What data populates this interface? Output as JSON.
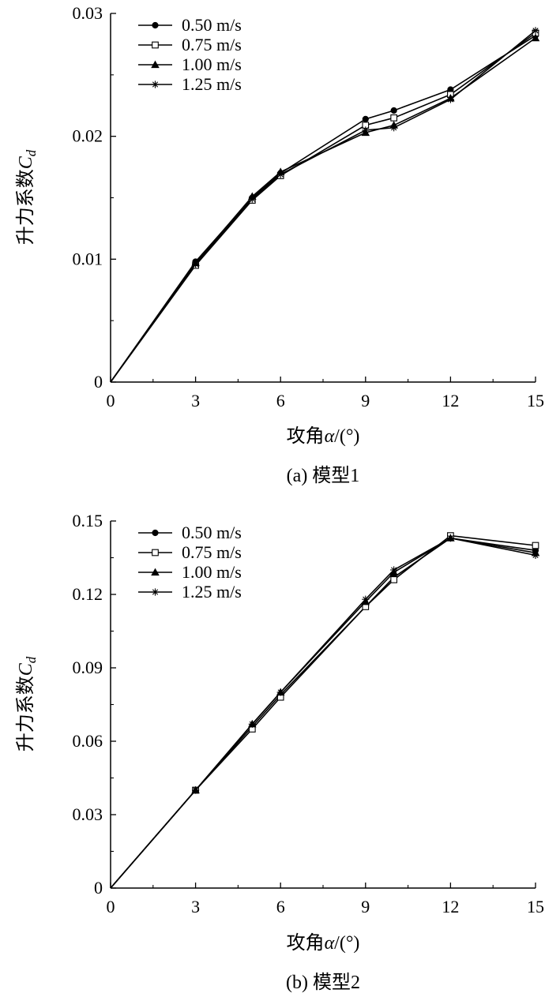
{
  "chart_data": [
    {
      "type": "line",
      "caption": "(a) 模型1",
      "xlabel": "攻角α/(°)",
      "ylabel": "升力系数C_d",
      "ylabel_main": "升力系数",
      "ylabel_symbol": "C",
      "ylabel_subscript": "d",
      "xlabel_main": "攻角",
      "xlabel_symbol": "α",
      "xlabel_unit": "/(°)",
      "x": [
        0,
        3,
        5,
        6,
        9,
        10,
        12,
        15
      ],
      "xlim": [
        0,
        15
      ],
      "ylim": [
        0,
        0.03
      ],
      "xticks": [
        0,
        3,
        6,
        9,
        12,
        15
      ],
      "xtick_labels": [
        "0",
        "3",
        "6",
        "9",
        "12",
        "15"
      ],
      "yticks": [
        0,
        0.01,
        0.02,
        0.03
      ],
      "ytick_labels": [
        "0",
        "0.01",
        "0.02",
        "0.03"
      ],
      "legend_position": "top-left",
      "series": [
        {
          "name": "0.50 m/s",
          "marker": "filled-circle",
          "values": [
            0,
            0.0098,
            0.015,
            0.017,
            0.0214,
            0.0221,
            0.0238,
            0.0282
          ]
        },
        {
          "name": "0.75 m/s",
          "marker": "open-square",
          "values": [
            0,
            0.0095,
            0.0148,
            0.0168,
            0.0209,
            0.0215,
            0.0234,
            0.0284
          ]
        },
        {
          "name": "1.00 m/s",
          "marker": "filled-triangle",
          "values": [
            0,
            0.0097,
            0.0151,
            0.0171,
            0.0203,
            0.0209,
            0.0231,
            0.028
          ]
        },
        {
          "name": "1.25 m/s",
          "marker": "asterisk",
          "values": [
            0,
            0.0096,
            0.0149,
            0.0169,
            0.0205,
            0.0207,
            0.023,
            0.0286
          ]
        }
      ]
    },
    {
      "type": "line",
      "caption": "(b) 模型2",
      "xlabel": "攻角α/(°)",
      "ylabel": "升力系数C_d",
      "ylabel_main": "升力系数",
      "ylabel_symbol": "C",
      "ylabel_subscript": "d",
      "xlabel_main": "攻角",
      "xlabel_symbol": "α",
      "xlabel_unit": "/(°)",
      "x": [
        0,
        3,
        5,
        6,
        9,
        10,
        12,
        15
      ],
      "xlim": [
        0,
        15
      ],
      "ylim": [
        0,
        0.15
      ],
      "xticks": [
        0,
        3,
        6,
        9,
        12,
        15
      ],
      "xtick_labels": [
        "0",
        "3",
        "6",
        "9",
        "12",
        "15"
      ],
      "yticks": [
        0,
        0.03,
        0.06,
        0.09,
        0.12,
        0.15
      ],
      "ytick_labels": [
        "0",
        "0.03",
        "0.06",
        "0.09",
        "0.12",
        "0.15"
      ],
      "legend_position": "top-left",
      "series": [
        {
          "name": "0.50 m/s",
          "marker": "filled-circle",
          "values": [
            0,
            0.04,
            0.066,
            0.079,
            0.115,
            0.127,
            0.143,
            0.138
          ]
        },
        {
          "name": "0.75 m/s",
          "marker": "open-square",
          "values": [
            0,
            0.04,
            0.065,
            0.078,
            0.115,
            0.126,
            0.144,
            0.14
          ]
        },
        {
          "name": "1.00 m/s",
          "marker": "filled-triangle",
          "values": [
            0,
            0.04,
            0.067,
            0.08,
            0.117,
            0.129,
            0.143,
            0.137
          ]
        },
        {
          "name": "1.25 m/s",
          "marker": "asterisk",
          "values": [
            0,
            0.04,
            0.067,
            0.08,
            0.118,
            0.13,
            0.143,
            0.136
          ]
        }
      ]
    }
  ]
}
